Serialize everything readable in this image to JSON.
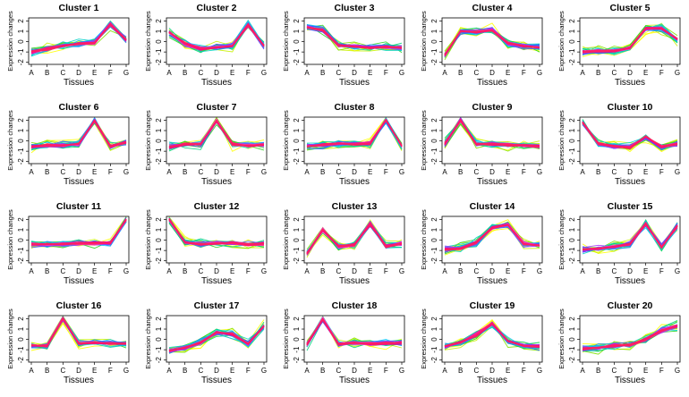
{
  "chart_data": {
    "type": "line",
    "layout": "4 rows x 5 columns of small-multiple line plots",
    "x_categories": [
      "A",
      "B",
      "C",
      "D",
      "E",
      "F",
      "G"
    ],
    "x_label": "Tissues",
    "y_label": "Expression changes",
    "y_ticks": [
      -2,
      -1,
      0,
      1,
      2
    ],
    "ylim": [
      -2.2,
      2.3
    ],
    "series_color_palette": [
      "#ffff00",
      "#c8f000",
      "#7ee000",
      "#2bd41f",
      "#00d27a",
      "#00d2c8",
      "#00bfff",
      "#1e90ff",
      "#3a5cff",
      "#6a3dff",
      "#a233ff",
      "#ff3ad0",
      "#ff1493",
      "#ff007f",
      "#ff2060"
    ],
    "panels": [
      {
        "title": "Cluster 1",
        "center_profile": [
          -1.0,
          -0.7,
          -0.4,
          -0.2,
          -0.1,
          1.7,
          0.2
        ]
      },
      {
        "title": "Cluster 2",
        "center_profile": [
          0.9,
          -0.2,
          -0.7,
          -0.5,
          -0.4,
          1.6,
          -0.4
        ]
      },
      {
        "title": "Cluster 3",
        "center_profile": [
          1.4,
          1.1,
          -0.4,
          -0.5,
          -0.6,
          -0.5,
          -0.6
        ]
      },
      {
        "title": "Cluster 4",
        "center_profile": [
          -1.3,
          1.0,
          0.9,
          1.1,
          -0.2,
          -0.4,
          -0.5
        ]
      },
      {
        "title": "Cluster 5",
        "center_profile": [
          -1.0,
          -0.9,
          -0.9,
          -0.6,
          1.3,
          1.3,
          0.2
        ]
      },
      {
        "title": "Cluster 6",
        "center_profile": [
          -0.6,
          -0.4,
          -0.4,
          -0.3,
          2.0,
          -0.5,
          -0.1
        ]
      },
      {
        "title": "Cluster 7",
        "center_profile": [
          -0.6,
          -0.3,
          -0.3,
          2.0,
          -0.3,
          -0.4,
          -0.4
        ]
      },
      {
        "title": "Cluster 8",
        "center_profile": [
          -0.5,
          -0.4,
          -0.3,
          -0.3,
          -0.3,
          2.0,
          -0.5
        ]
      },
      {
        "title": "Cluster 9",
        "center_profile": [
          -0.3,
          2.0,
          -0.3,
          -0.3,
          -0.4,
          -0.4,
          -0.5
        ]
      },
      {
        "title": "Cluster 10",
        "center_profile": [
          1.8,
          -0.3,
          -0.5,
          -0.6,
          0.4,
          -0.6,
          -0.3
        ]
      },
      {
        "title": "Cluster 11",
        "center_profile": [
          -0.4,
          -0.4,
          -0.4,
          -0.3,
          -0.3,
          -0.3,
          2.0
        ]
      },
      {
        "title": "Cluster 12",
        "center_profile": [
          2.0,
          -0.2,
          -0.4,
          -0.3,
          -0.3,
          -0.4,
          -0.3
        ]
      },
      {
        "title": "Cluster 13",
        "center_profile": [
          -1.3,
          1.0,
          -0.6,
          -0.5,
          1.6,
          -0.6,
          -0.3
        ]
      },
      {
        "title": "Cluster 14",
        "center_profile": [
          -0.9,
          -0.8,
          -0.2,
          1.2,
          1.5,
          -0.4,
          -0.5
        ]
      },
      {
        "title": "Cluster 15",
        "center_profile": [
          -0.9,
          -0.8,
          -0.6,
          -0.4,
          1.6,
          -0.7,
          1.4
        ]
      },
      {
        "title": "Cluster 16",
        "center_profile": [
          -0.6,
          -0.6,
          2.0,
          -0.4,
          -0.3,
          -0.4,
          -0.4
        ]
      },
      {
        "title": "Cluster 17",
        "center_profile": [
          -1.1,
          -0.8,
          -0.3,
          0.7,
          0.5,
          -0.4,
          1.3
        ]
      },
      {
        "title": "Cluster 18",
        "center_profile": [
          -0.5,
          2.0,
          -0.4,
          -0.3,
          -0.4,
          -0.4,
          -0.3
        ]
      },
      {
        "title": "Cluster 19",
        "center_profile": [
          -0.7,
          -0.3,
          0.4,
          1.5,
          -0.2,
          -0.6,
          -0.7
        ]
      },
      {
        "title": "Cluster 20",
        "center_profile": [
          -0.9,
          -0.8,
          -0.6,
          -0.5,
          0.0,
          0.9,
          1.3
        ]
      }
    ]
  }
}
